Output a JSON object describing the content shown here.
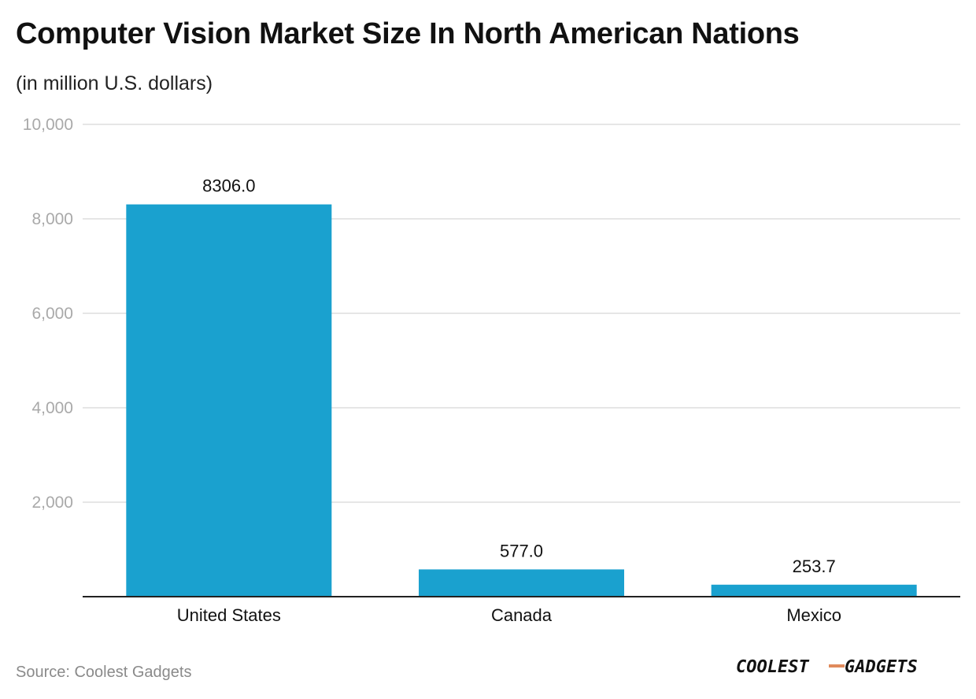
{
  "title": "Computer Vision Market Size In North American Nations",
  "subtitle": "(in million U.S. dollars)",
  "source": "Source: Coolest Gadgets",
  "logo_text": "COOLEST-GADGETS",
  "colors": {
    "bar": "#1aa1cf",
    "grid": "#dddddd",
    "axis": "#222222",
    "tick_label": "#a9a9a9",
    "logo_dash": "#e08a5c"
  },
  "chart_data": {
    "type": "bar",
    "title": "Computer Vision Market Size In North American Nations",
    "subtitle": "(in million U.S. dollars)",
    "categories": [
      "United States",
      "Canada",
      "Mexico"
    ],
    "values": [
      8306.0,
      577.0,
      253.7
    ],
    "value_labels": [
      "8306.0",
      "577.0",
      "253.7"
    ],
    "ylim": [
      0,
      10000
    ],
    "yticks": [
      2000,
      4000,
      6000,
      8000,
      10000
    ],
    "ytick_labels": [
      "2,000",
      "4,000",
      "6,000",
      "8,000",
      "10,000"
    ],
    "grid": true,
    "xlabel": "",
    "ylabel": ""
  }
}
